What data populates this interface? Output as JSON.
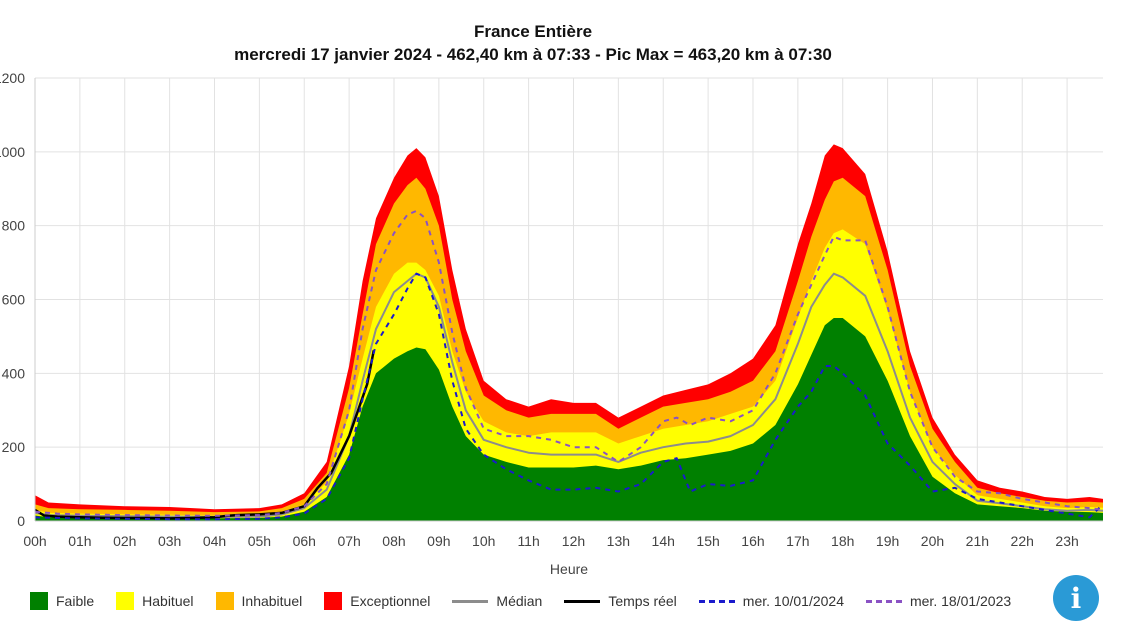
{
  "chart_data": {
    "type": "area",
    "title": "France Entière",
    "subtitle": "mercredi 17 janvier 2024 - 462,40 km à 07:33 - Pic Max = 463,20 km à 07:30",
    "xlabel": "Heure",
    "ylabel": "",
    "x_tick_labels": [
      "00h",
      "01h",
      "02h",
      "03h",
      "04h",
      "05h",
      "06h",
      "07h",
      "08h",
      "09h",
      "10h",
      "11h",
      "12h",
      "13h",
      "14h",
      "15h",
      "16h",
      "17h",
      "18h",
      "19h",
      "20h",
      "21h",
      "22h",
      "23h"
    ],
    "y_tick_labels": [
      "0",
      "200",
      "400",
      "600",
      "800",
      "1000",
      "1200"
    ],
    "xlim": [
      0,
      23.8
    ],
    "ylim": [
      0,
      1200
    ],
    "grid": true,
    "legend_position": "bottom",
    "series": [
      {
        "name": "Exceptionnel",
        "kind": "area",
        "color": "#ff0000",
        "x": [
          0,
          0.3,
          1,
          2,
          3,
          4,
          5,
          5.5,
          6,
          6.5,
          7,
          7.3,
          7.6,
          8,
          8.3,
          8.5,
          8.7,
          9,
          9.3,
          9.6,
          10,
          10.5,
          11,
          11.5,
          12,
          12.5,
          13,
          13.5,
          14,
          14.5,
          15,
          15.5,
          16,
          16.5,
          17,
          17.3,
          17.6,
          17.8,
          18,
          18.5,
          19,
          19.5,
          20,
          20.5,
          21,
          21.5,
          22,
          22.5,
          23,
          23.5,
          23.8
        ],
        "y": [
          70,
          50,
          45,
          40,
          38,
          32,
          35,
          45,
          75,
          160,
          420,
          650,
          820,
          930,
          990,
          1010,
          985,
          880,
          680,
          520,
          380,
          330,
          310,
          330,
          320,
          320,
          280,
          310,
          340,
          355,
          370,
          400,
          440,
          530,
          750,
          860,
          990,
          1020,
          1010,
          940,
          730,
          460,
          280,
          180,
          110,
          90,
          80,
          65,
          60,
          65,
          60
        ]
      },
      {
        "name": "Inhabituel",
        "kind": "area",
        "color": "#ffb800",
        "x": [
          0,
          0.3,
          1,
          2,
          3,
          4,
          5,
          5.5,
          6,
          6.5,
          7,
          7.3,
          7.6,
          8,
          8.3,
          8.5,
          8.7,
          9,
          9.3,
          9.6,
          10,
          10.5,
          11,
          11.5,
          12,
          12.5,
          13,
          13.5,
          14,
          14.5,
          15,
          15.5,
          16,
          16.5,
          17,
          17.3,
          17.6,
          17.8,
          18,
          18.5,
          19,
          19.5,
          20,
          20.5,
          21,
          21.5,
          22,
          22.5,
          23,
          23.5,
          23.8
        ],
        "y": [
          45,
          35,
          32,
          30,
          28,
          24,
          26,
          35,
          60,
          130,
          360,
          560,
          750,
          860,
          910,
          930,
          900,
          800,
          600,
          460,
          340,
          300,
          280,
          290,
          290,
          290,
          250,
          280,
          310,
          320,
          330,
          350,
          380,
          460,
          650,
          770,
          870,
          920,
          930,
          880,
          680,
          420,
          250,
          160,
          90,
          75,
          65,
          55,
          50,
          52,
          50
        ]
      },
      {
        "name": "Habituel",
        "kind": "area",
        "color": "#ffff00",
        "x": [
          0,
          0.3,
          1,
          2,
          3,
          4,
          5,
          5.5,
          6,
          6.5,
          7,
          7.3,
          7.6,
          8,
          8.3,
          8.5,
          8.7,
          9,
          9.3,
          9.6,
          10,
          10.5,
          11,
          11.5,
          12,
          12.5,
          13,
          13.5,
          14,
          14.5,
          15,
          15.5,
          16,
          16.5,
          17,
          17.3,
          17.6,
          17.8,
          18,
          18.5,
          19,
          19.5,
          20,
          20.5,
          21,
          21.5,
          22,
          22.5,
          23,
          23.5,
          23.8
        ],
        "y": [
          30,
          22,
          20,
          18,
          17,
          15,
          17,
          25,
          45,
          105,
          290,
          440,
          580,
          670,
          700,
          700,
          680,
          610,
          460,
          350,
          270,
          240,
          230,
          240,
          240,
          240,
          210,
          230,
          250,
          260,
          270,
          290,
          310,
          380,
          550,
          650,
          740,
          780,
          790,
          750,
          570,
          350,
          200,
          125,
          70,
          60,
          50,
          40,
          35,
          38,
          36
        ]
      },
      {
        "name": "Faible",
        "kind": "area",
        "color": "#008000",
        "x": [
          0,
          0.3,
          1,
          2,
          3,
          4,
          5,
          5.5,
          6,
          6.5,
          7,
          7.3,
          7.6,
          8,
          8.3,
          8.5,
          8.7,
          9,
          9.3,
          9.6,
          10,
          10.5,
          11,
          11.5,
          12,
          12.5,
          13,
          13.5,
          14,
          14.5,
          15,
          15.5,
          16,
          16.5,
          17,
          17.3,
          17.6,
          17.8,
          18,
          18.5,
          19,
          19.5,
          20,
          20.5,
          21,
          21.5,
          22,
          22.5,
          23,
          23.5,
          23.8
        ],
        "y": [
          15,
          10,
          9,
          8,
          7,
          7,
          8,
          12,
          25,
          65,
          180,
          310,
          400,
          440,
          460,
          470,
          465,
          410,
          310,
          230,
          180,
          160,
          145,
          145,
          145,
          150,
          140,
          150,
          165,
          170,
          180,
          190,
          210,
          260,
          370,
          450,
          530,
          550,
          550,
          500,
          380,
          230,
          120,
          75,
          45,
          40,
          35,
          28,
          25,
          24,
          22
        ]
      },
      {
        "name": "Médian",
        "kind": "line",
        "color": "#8c8c8c",
        "dash": "",
        "x": [
          0,
          0.3,
          1,
          2,
          3,
          4,
          5,
          5.5,
          6,
          6.5,
          7,
          7.3,
          7.6,
          8,
          8.3,
          8.5,
          8.7,
          9,
          9.3,
          9.6,
          10,
          10.5,
          11,
          11.5,
          12,
          12.5,
          13,
          13.5,
          14,
          14.5,
          15,
          15.5,
          16,
          16.5,
          17,
          17.3,
          17.6,
          17.8,
          18,
          18.5,
          19,
          19.5,
          20,
          20.5,
          21,
          21.5,
          22,
          22.5,
          23,
          23.5,
          23.8
        ],
        "y": [
          22,
          16,
          14,
          13,
          12,
          11,
          12,
          18,
          35,
          85,
          230,
          380,
          520,
          620,
          650,
          670,
          660,
          580,
          430,
          300,
          220,
          200,
          185,
          180,
          180,
          180,
          160,
          185,
          200,
          210,
          215,
          230,
          260,
          330,
          480,
          580,
          640,
          670,
          660,
          610,
          460,
          280,
          160,
          100,
          55,
          48,
          40,
          32,
          28,
          30,
          28
        ]
      },
      {
        "name": "Temps réel",
        "kind": "line",
        "color": "#000000",
        "dash": "",
        "x": [
          0,
          0.2,
          0.5,
          1,
          1.5,
          2,
          2.5,
          3,
          3.5,
          4,
          4.3,
          4.5,
          5,
          5.5,
          6,
          6.3,
          6.6,
          7,
          7.2,
          7.4,
          7.55
        ],
        "y": [
          30,
          15,
          12,
          10,
          9,
          8,
          8,
          7,
          8,
          10,
          14,
          16,
          18,
          22,
          40,
          90,
          130,
          230,
          300,
          370,
          462
        ]
      },
      {
        "name": "mer. 10/01/2024",
        "kind": "line",
        "color": "#1a1acc",
        "dash": "5,5",
        "x": [
          0,
          0.5,
          1,
          2,
          3,
          4,
          5,
          5.5,
          6,
          6.5,
          7,
          7.3,
          7.6,
          8,
          8.3,
          8.5,
          8.7,
          9,
          9.3,
          9.6,
          10,
          10.5,
          11,
          11.5,
          12,
          12.5,
          13,
          13.5,
          14,
          14.3,
          14.6,
          15,
          15.5,
          16,
          16.5,
          17,
          17.3,
          17.6,
          17.8,
          18,
          18.5,
          19,
          19.5,
          20,
          20.5,
          21,
          21.5,
          22,
          22.5,
          23,
          23.5,
          23.8
        ],
        "y": [
          10,
          8,
          7,
          6,
          5,
          5,
          6,
          10,
          20,
          60,
          170,
          330,
          480,
          560,
          630,
          670,
          660,
          560,
          380,
          250,
          180,
          140,
          110,
          85,
          85,
          90,
          80,
          100,
          160,
          170,
          80,
          100,
          95,
          110,
          220,
          310,
          350,
          420,
          420,
          400,
          340,
          210,
          150,
          80,
          90,
          60,
          50,
          40,
          30,
          20,
          10,
          45
        ]
      },
      {
        "name": "mer. 18/01/2023",
        "kind": "line",
        "color": "#8a52c4",
        "dash": "5,5",
        "x": [
          0,
          0.5,
          1,
          2,
          3,
          4,
          5,
          5.5,
          6,
          6.5,
          7,
          7.3,
          7.6,
          8,
          8.3,
          8.5,
          8.7,
          9,
          9.3,
          9.6,
          10,
          10.5,
          11,
          11.5,
          12,
          12.5,
          13,
          13.5,
          14,
          14.3,
          14.6,
          15,
          15.5,
          16,
          16.5,
          17,
          17.3,
          17.6,
          17.8,
          18,
          18.5,
          19,
          19.5,
          20,
          20.5,
          21,
          21.5,
          22,
          22.5,
          23,
          23.5,
          23.8
        ],
        "y": [
          25,
          20,
          18,
          16,
          15,
          14,
          16,
          22,
          40,
          100,
          300,
          520,
          680,
          780,
          830,
          840,
          820,
          700,
          510,
          360,
          250,
          230,
          230,
          220,
          200,
          200,
          160,
          200,
          270,
          280,
          260,
          280,
          270,
          300,
          400,
          560,
          640,
          720,
          770,
          760,
          760,
          580,
          350,
          200,
          120,
          80,
          75,
          60,
          50,
          40,
          35,
          30
        ]
      }
    ]
  },
  "legend": [
    {
      "label": "Faible",
      "type": "box",
      "color": "#008000"
    },
    {
      "label": "Habituel",
      "type": "box",
      "color": "#ffff00"
    },
    {
      "label": "Inhabituel",
      "type": "box",
      "color": "#ffb800"
    },
    {
      "label": "Exceptionnel",
      "type": "box",
      "color": "#ff0000"
    },
    {
      "label": "Médian",
      "type": "line",
      "color": "#8c8c8c",
      "dash": "solid"
    },
    {
      "label": "Temps réel",
      "type": "line",
      "color": "#000000",
      "dash": "solid"
    },
    {
      "label": "mer. 10/01/2024",
      "type": "line",
      "color": "#1a1acc",
      "dash": "dashed"
    },
    {
      "label": "mer. 18/01/2023",
      "type": "line",
      "color": "#8a52c4",
      "dash": "dashed"
    }
  ],
  "info_button": {
    "icon": "info-icon",
    "glyph": "i",
    "color": "#2a9ad6"
  }
}
